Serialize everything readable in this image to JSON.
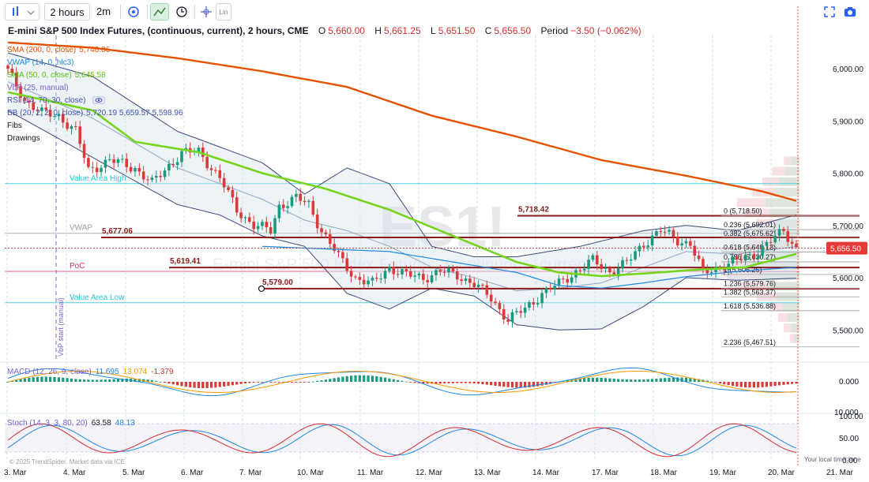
{
  "toolbar": {
    "interval": "2 hours",
    "compare": "2m",
    "scale_mode": "Lin"
  },
  "header": {
    "symbol_title": "E-mini S&P 500 Index Futures, (continuous, current), 2 hours, CME",
    "open_label": "O",
    "open": "5,660.00",
    "high_label": "H",
    "high": "5,661.25",
    "low_label": "L",
    "low": "5,651.50",
    "close_label": "C",
    "close": "5,656.50",
    "period_label": "Period",
    "period": "−3.50 (−0.062%)"
  },
  "legend": {
    "sma200": {
      "label": "SMA (200, 0, close)",
      "value": "5,746.86",
      "color": "#e65100"
    },
    "vwap": {
      "label": "VWAP (14, 0, hlc3)",
      "value": "",
      "color": "#1e88e5"
    },
    "sma50": {
      "label": "SMA (50, 0, close)",
      "value": "5,645.58",
      "color": "#76d41c"
    },
    "vbp": {
      "label": "VbP (25, manual)",
      "value": "",
      "color": "#7a5fd0"
    },
    "rsi": {
      "label": "RSI (14, 70, 30, close)",
      "value": "",
      "color": "#3f51b5"
    },
    "bb": {
      "label": "BB (20, 2, 2, 0, close)",
      "value": "5,720.19   5,659.57   5,598.96",
      "color": "#3f51b5"
    },
    "fibs": {
      "label": "Fibs",
      "color": "#131722"
    },
    "drawings": {
      "label": "Drawings",
      "color": "#131722"
    }
  },
  "watermark": {
    "big": "ES1!",
    "small": "E-mini S&P 500 Index Futures, (continuous, current)"
  },
  "levels": {
    "value_area_high": "Value Area High",
    "vwap": "VWAP",
    "poc": "PoC",
    "value_area_low": "Value Area Low",
    "vbp_start": "VbP start (manual)",
    "lv_5718": "5,718.42",
    "lv_5677": "5,677.06",
    "lv_5619": "5,619.41",
    "lv_5579": "5,579.00"
  },
  "fib_labels": [
    {
      "text": "0 (5,718.50)",
      "value": 5718.5
    },
    {
      "text": "0.236 (5,692.01)",
      "value": 5692.01
    },
    {
      "text": "0.382 (5,675.62)",
      "value": 5675.62
    },
    {
      "text": "0.618 (5,649.13)",
      "value": 5649.13
    },
    {
      "text": "0.786 (5,630.27)",
      "value": 5630.27
    },
    {
      "text": "1 (5,606.25)",
      "value": 5606.25
    },
    {
      "text": "1.236 (5,579.76)",
      "value": 5579.76
    },
    {
      "text": "1.382 (5,563.37)",
      "value": 5563.37
    },
    {
      "text": "1.618 (5,536.88)",
      "value": 5536.88
    },
    {
      "text": "2.236 (5,467.51)",
      "value": 5467.51
    }
  ],
  "price_tag": "5,656.50",
  "macd": {
    "label": "MACD (12, 26, 9, close)",
    "v1": "11.695",
    "v2": "13.074",
    "v3": "-1.379",
    "c1": "#1e88e5",
    "c2": "#ff9800",
    "c3": "#d32f2f",
    "axis_zero": "0.000"
  },
  "stoch": {
    "label": "Stoch (14, 3, 3, 80, 20)",
    "v1": "63.58",
    "v2": "48.13",
    "c1": "#d32f2f",
    "c2": "#1e88e5",
    "axis_top": "100.00",
    "axis_mid": "50.00",
    "axis_bot": "0.00"
  },
  "footer": {
    "copyright": "© 2025 TrendSpider. Market data via ICE",
    "local_time": "Your local time zone"
  },
  "chart_data": {
    "type": "candlestick",
    "title": "E-mini S&P 500 Index Futures, (continuous, current), 2 hours, CME",
    "price_axis_ticks": [
      6000,
      5900,
      5800,
      5700,
      5600,
      5500
    ],
    "price_axis_labels": [
      "6,000.00",
      "5,900.00",
      "5,800.00",
      "5,700.00",
      "5,600.00",
      "5,500.00"
    ],
    "macd_axis_labels": [
      "10.000",
      "0.000"
    ],
    "x_axis_labels": [
      "3. Mar",
      "4. Mar",
      "5. Mar",
      "6. Mar",
      "7. Mar",
      "10. Mar",
      "11. Mar",
      "12. Mar",
      "13. Mar",
      "14. Mar",
      "17. Mar",
      "18. Mar",
      "19. Mar",
      "20. Mar",
      "21. Mar"
    ],
    "ylim": [
      5460,
      6060
    ],
    "close_keypoints": [
      [
        0,
        5995
      ],
      [
        4,
        5940
      ],
      [
        8,
        5915
      ],
      [
        12,
        5910
      ],
      [
        16,
        5880
      ],
      [
        19,
        5805
      ],
      [
        24,
        5825
      ],
      [
        30,
        5810
      ],
      [
        34,
        5780
      ],
      [
        38,
        5815
      ],
      [
        41,
        5838
      ],
      [
        45,
        5842
      ],
      [
        50,
        5790
      ],
      [
        54,
        5730
      ],
      [
        58,
        5700
      ],
      [
        62,
        5690
      ],
      [
        64,
        5738
      ],
      [
        68,
        5752
      ],
      [
        71,
        5740
      ],
      [
        74,
        5690
      ],
      [
        78,
        5640
      ],
      [
        82,
        5600
      ],
      [
        86,
        5588
      ],
      [
        90,
        5620
      ],
      [
        94,
        5605
      ],
      [
        98,
        5600
      ],
      [
        102,
        5612
      ],
      [
        106,
        5605
      ],
      [
        110,
        5588
      ],
      [
        114,
        5560
      ],
      [
        118,
        5520
      ],
      [
        122,
        5540
      ],
      [
        126,
        5570
      ],
      [
        130,
        5588
      ],
      [
        134,
        5612
      ],
      [
        138,
        5632
      ],
      [
        142,
        5612
      ],
      [
        146,
        5628
      ],
      [
        150,
        5666
      ],
      [
        154,
        5690
      ],
      [
        158,
        5672
      ],
      [
        161,
        5665
      ],
      [
        164,
        5608
      ],
      [
        168,
        5622
      ],
      [
        172,
        5632
      ],
      [
        176,
        5645
      ],
      [
        180,
        5670
      ],
      [
        183,
        5690
      ],
      [
        186,
        5656.5
      ]
    ],
    "sma200_keypoints": [
      [
        0,
        6050
      ],
      [
        20,
        6040
      ],
      [
        40,
        6020
      ],
      [
        60,
        5995
      ],
      [
        80,
        5965
      ],
      [
        100,
        5910
      ],
      [
        120,
        5870
      ],
      [
        140,
        5825
      ],
      [
        160,
        5795
      ],
      [
        178,
        5765
      ],
      [
        186,
        5747
      ]
    ],
    "sma50_keypoints": [
      [
        0,
        5955
      ],
      [
        20,
        5920
      ],
      [
        30,
        5860
      ],
      [
        45,
        5840
      ],
      [
        60,
        5800
      ],
      [
        75,
        5770
      ],
      [
        90,
        5730
      ],
      [
        105,
        5680
      ],
      [
        120,
        5630
      ],
      [
        130,
        5610
      ],
      [
        140,
        5603
      ],
      [
        150,
        5608
      ],
      [
        162,
        5615
      ],
      [
        174,
        5620
      ],
      [
        186,
        5645.6
      ]
    ],
    "bb_upper_keypoints": [
      [
        0,
        6030
      ],
      [
        20,
        5985
      ],
      [
        40,
        5880
      ],
      [
        60,
        5820
      ],
      [
        70,
        5760
      ],
      [
        80,
        5810
      ],
      [
        90,
        5780
      ],
      [
        100,
        5660
      ],
      [
        110,
        5640
      ],
      [
        120,
        5640
      ],
      [
        135,
        5660
      ],
      [
        150,
        5690
      ],
      [
        160,
        5700
      ],
      [
        172,
        5690
      ],
      [
        186,
        5720.2
      ]
    ],
    "bb_lower_keypoints": [
      [
        0,
        5920
      ],
      [
        20,
        5830
      ],
      [
        40,
        5740
      ],
      [
        50,
        5720
      ],
      [
        60,
        5680
      ],
      [
        70,
        5660
      ],
      [
        80,
        5570
      ],
      [
        90,
        5540
      ],
      [
        100,
        5580
      ],
      [
        110,
        5565
      ],
      [
        120,
        5510
      ],
      [
        130,
        5500
      ],
      [
        140,
        5502
      ],
      [
        150,
        5545
      ],
      [
        160,
        5600
      ],
      [
        172,
        5595
      ],
      [
        186,
        5599
      ]
    ],
    "bb_middle_keypoints": [
      [
        0,
        5975
      ],
      [
        20,
        5905
      ],
      [
        40,
        5810
      ],
      [
        60,
        5750
      ],
      [
        70,
        5710
      ],
      [
        80,
        5690
      ],
      [
        90,
        5660
      ],
      [
        100,
        5620
      ],
      [
        110,
        5600
      ],
      [
        120,
        5575
      ],
      [
        130,
        5580
      ],
      [
        140,
        5590
      ],
      [
        150,
        5620
      ],
      [
        160,
        5650
      ],
      [
        172,
        5645
      ],
      [
        186,
        5659.6
      ]
    ],
    "vwap_keypoints": [
      [
        60,
        5660
      ],
      [
        90,
        5650
      ],
      [
        120,
        5610
      ],
      [
        130,
        5585
      ],
      [
        140,
        5580
      ],
      [
        150,
        5590
      ],
      [
        160,
        5602
      ],
      [
        172,
        5612
      ],
      [
        186,
        5620
      ]
    ],
    "vbp_levels": {
      "value_area_high": 5780,
      "vwap": 5685,
      "poc": 5612,
      "value_area_low": 5552
    },
    "drawn_levels": [
      5718.42,
      5677.06,
      5619.41,
      5579.0
    ],
    "macd": {
      "current": 11.695,
      "signal": 13.074,
      "histogram": -1.379
    },
    "stoch": {
      "k": 63.58,
      "d": 48.13,
      "overbought": 80,
      "oversold": 20
    }
  }
}
